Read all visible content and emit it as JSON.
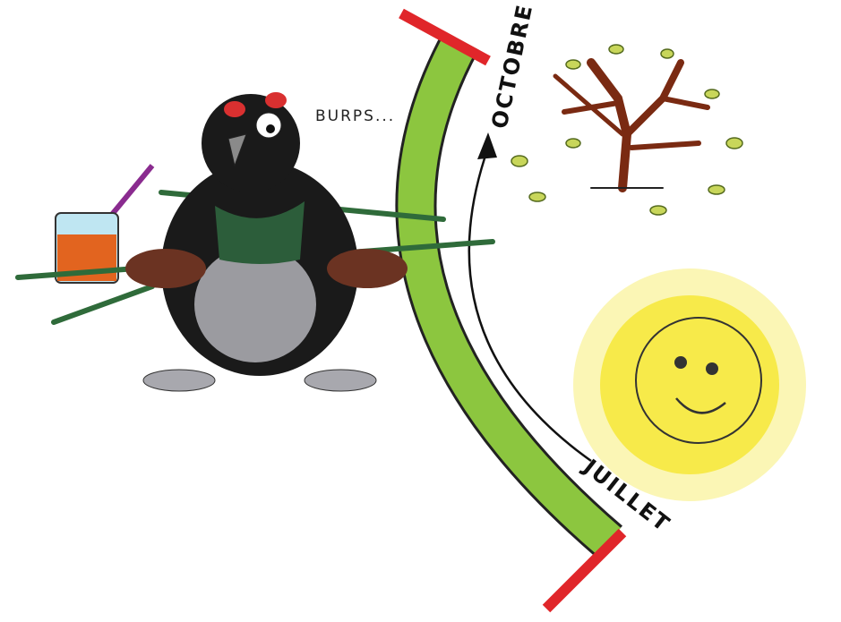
{
  "labels": {
    "burp": "BURPS...",
    "top_month": "OCTOBRE",
    "bottom_month": "JUILLET"
  }
}
